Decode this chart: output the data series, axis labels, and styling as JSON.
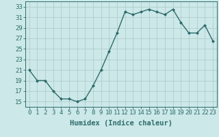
{
  "xlabel": "Humidex (Indice chaleur)",
  "x": [
    0,
    1,
    2,
    3,
    4,
    5,
    6,
    7,
    8,
    9,
    10,
    11,
    12,
    13,
    14,
    15,
    16,
    17,
    18,
    19,
    20,
    21,
    22,
    23
  ],
  "y": [
    21,
    19,
    19,
    17,
    15.5,
    15.5,
    15,
    15.5,
    18,
    21,
    24.5,
    28,
    32,
    31.5,
    32,
    32.5,
    32,
    31.5,
    32.5,
    30,
    28,
    28,
    29.5,
    26.5
  ],
  "line_color": "#2e6b6b",
  "marker": "D",
  "marker_size": 2.0,
  "bg_color": "#cce8e8",
  "grid_color": "#b0cccc",
  "tick_color": "#2e6b6b",
  "text_color": "#2e6b6b",
  "ylim": [
    14,
    34
  ],
  "yticks": [
    15,
    17,
    19,
    21,
    23,
    25,
    27,
    29,
    31,
    33
  ],
  "xticks": [
    0,
    1,
    2,
    3,
    4,
    5,
    6,
    7,
    8,
    9,
    10,
    11,
    12,
    13,
    14,
    15,
    16,
    17,
    18,
    19,
    20,
    21,
    22,
    23
  ],
  "line_width": 1.0,
  "font_size": 6.5,
  "xlabel_fontsize": 7.5
}
